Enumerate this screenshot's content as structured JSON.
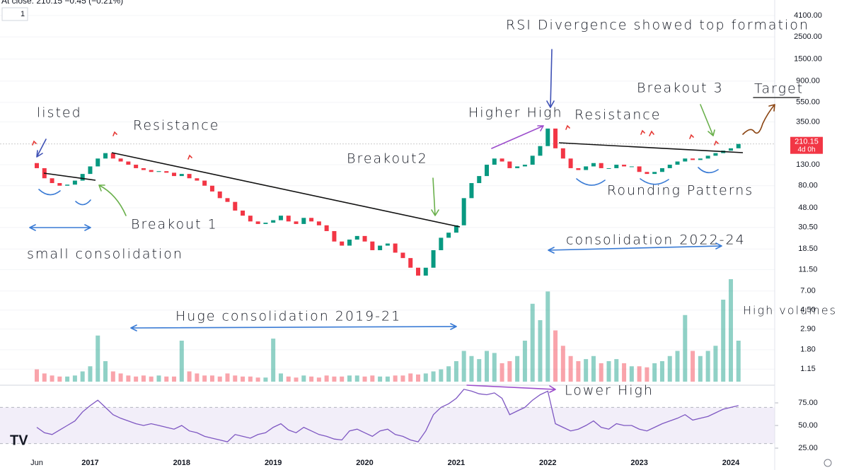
{
  "chart_data": {
    "type": "candlestick",
    "header": "At close: 210.15 −0.45 (−0.21%)",
    "interval": "1",
    "log_scale": true,
    "categories": [
      "Jun",
      null,
      null,
      null,
      null,
      null,
      null,
      "2017",
      null,
      null,
      null,
      null,
      null,
      null,
      null,
      null,
      null,
      null,
      null,
      "2018",
      null,
      null,
      null,
      null,
      null,
      null,
      null,
      null,
      null,
      null,
      null,
      "2019",
      null,
      null,
      null,
      null,
      null,
      null,
      null,
      null,
      null,
      null,
      null,
      "2020",
      null,
      null,
      null,
      null,
      null,
      null,
      null,
      null,
      null,
      null,
      null,
      "2021",
      null,
      null,
      null,
      null,
      null,
      null,
      null,
      null,
      null,
      null,
      null,
      "2022",
      null,
      null,
      null,
      null,
      null,
      null,
      null,
      null,
      null,
      null,
      null,
      "2023",
      null,
      null,
      null,
      null,
      null,
      null,
      null,
      null,
      null,
      null,
      null,
      "2024",
      null
    ],
    "open": [
      135,
      120,
      95,
      85,
      80,
      82,
      90,
      105,
      125,
      150,
      170,
      150,
      140,
      130,
      120,
      115,
      110,
      112,
      108,
      100,
      105,
      95,
      90,
      80,
      70,
      60,
      55,
      45,
      40,
      35,
      33,
      34,
      36,
      40,
      35,
      33,
      38,
      35,
      32,
      28,
      22,
      20,
      23,
      25,
      22,
      18,
      20,
      21,
      17,
      15,
      12,
      10,
      12,
      18,
      24,
      27,
      32,
      60,
      85,
      100,
      130,
      150,
      140,
      120,
      125,
      130,
      160,
      200,
      300,
      190,
      150,
      120,
      115,
      125,
      135,
      120,
      120,
      130,
      125,
      125,
      110,
      105,
      110,
      120,
      130,
      140,
      150,
      145,
      150,
      160,
      170,
      180,
      190
    ],
    "close": [
      120,
      95,
      85,
      80,
      82,
      90,
      105,
      125,
      150,
      170,
      150,
      140,
      130,
      120,
      115,
      110,
      112,
      108,
      100,
      105,
      95,
      90,
      80,
      70,
      60,
      55,
      45,
      40,
      35,
      33,
      34,
      36,
      40,
      35,
      33,
      38,
      35,
      32,
      28,
      22,
      20,
      23,
      25,
      22,
      18,
      20,
      21,
      17,
      15,
      12,
      10,
      12,
      18,
      24,
      27,
      32,
      60,
      85,
      100,
      130,
      150,
      140,
      120,
      125,
      130,
      160,
      200,
      300,
      190,
      150,
      120,
      115,
      125,
      135,
      120,
      120,
      130,
      125,
      125,
      110,
      105,
      110,
      120,
      130,
      140,
      150,
      145,
      150,
      160,
      170,
      180,
      190,
      210.15
    ],
    "color_up": "#089981",
    "color_down": "#f23645",
    "ylim": [
      0.86,
      5870
    ],
    "yticks": [
      {
        "value": 4100,
        "label": "4100.00"
      },
      {
        "value": 2500,
        "label": "2500.00"
      },
      {
        "value": 1500,
        "label": "1500.00"
      },
      {
        "value": 900,
        "label": "900.00"
      },
      {
        "value": 550,
        "label": "550.00"
      },
      {
        "value": 350,
        "label": "350.00"
      },
      {
        "value": 130,
        "label": "130.00"
      },
      {
        "value": 80,
        "label": "80.00"
      },
      {
        "value": 48,
        "label": "48.00"
      },
      {
        "value": 30.5,
        "label": "30.50"
      },
      {
        "value": 18.5,
        "label": "18.50"
      },
      {
        "value": 11.5,
        "label": "11.50"
      },
      {
        "value": 7,
        "label": "7.00"
      },
      {
        "value": 4.5,
        "label": "4.50"
      },
      {
        "value": 2.9,
        "label": "2.90"
      },
      {
        "value": 1.8,
        "label": "1.80"
      },
      {
        "value": 1.15,
        "label": "1.15"
      }
    ],
    "last_price": {
      "value": 210.15,
      "label": "210.15"
    },
    "countdown": "4d 0h",
    "volume": {
      "values": [
        12,
        8,
        6,
        5,
        5,
        6,
        10,
        15,
        45,
        20,
        10,
        8,
        6,
        5,
        6,
        5,
        6,
        5,
        5,
        40,
        10,
        8,
        6,
        6,
        5,
        8,
        6,
        5,
        5,
        4,
        4,
        42,
        8,
        5,
        4,
        6,
        5,
        4,
        6,
        5,
        5,
        6,
        6,
        5,
        6,
        5,
        5,
        6,
        6,
        8,
        7,
        8,
        10,
        12,
        15,
        20,
        30,
        25,
        22,
        30,
        28,
        18,
        20,
        25,
        40,
        76,
        60,
        88,
        50,
        35,
        25,
        20,
        22,
        25,
        18,
        20,
        22,
        18,
        15,
        15,
        14,
        18,
        20,
        25,
        30,
        65,
        30,
        25,
        30,
        35,
        80,
        100,
        40
      ],
      "ylim": [
        0,
        100
      ]
    },
    "rsi": {
      "values": [
        48,
        42,
        40,
        45,
        50,
        55,
        65,
        72,
        78,
        70,
        62,
        58,
        55,
        52,
        50,
        52,
        50,
        48,
        46,
        50,
        44,
        42,
        38,
        36,
        34,
        32,
        40,
        38,
        36,
        40,
        42,
        48,
        52,
        45,
        42,
        48,
        44,
        40,
        38,
        35,
        34,
        44,
        46,
        42,
        38,
        44,
        46,
        40,
        38,
        34,
        32,
        44,
        62,
        70,
        74,
        80,
        90,
        88,
        85,
        84,
        86,
        80,
        62,
        66,
        70,
        78,
        84,
        88,
        52,
        48,
        44,
        46,
        50,
        55,
        48,
        46,
        52,
        50,
        50,
        46,
        44,
        48,
        52,
        55,
        58,
        62,
        56,
        58,
        60,
        64,
        68,
        70,
        72
      ],
      "color": "#7e57c2",
      "ylim": [
        14.1,
        92.2
      ],
      "yticks": [
        {
          "value": 75,
          "label": "75.00"
        },
        {
          "value": 50,
          "label": "50.00"
        },
        {
          "value": 25,
          "label": "25.00"
        }
      ],
      "band": [
        30,
        70
      ]
    },
    "annotations": [
      "listed",
      "Resistance",
      "Breakout 1",
      "small consolidation",
      "Huge consolidation 2019-21",
      "Breakout2",
      "Higher High",
      "RSI Divergence showed top formation",
      "Resistance",
      "Breakout 3",
      "Target",
      "Rounding Patterns",
      "consolidation 2022-24",
      "High volumes",
      "Lower High"
    ]
  }
}
